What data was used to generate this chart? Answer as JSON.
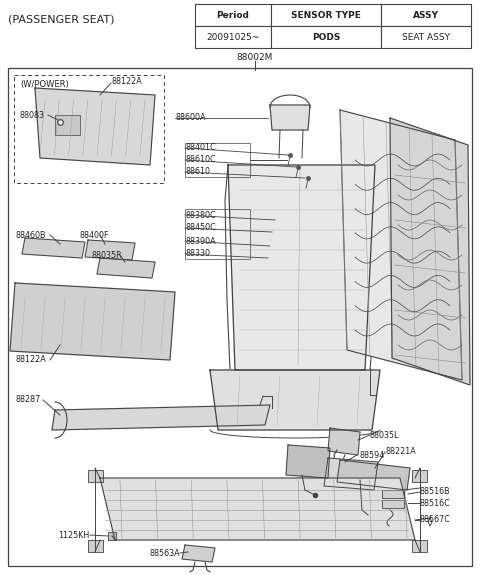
{
  "title": "(PASSENGER SEAT)",
  "part_number": "88002M",
  "table_headers": [
    "Period",
    "SENSOR TYPE",
    "ASSY"
  ],
  "table_row": [
    "20091025~",
    "PODS",
    "SEAT ASSY"
  ],
  "subbox_label": "(W/POWER)",
  "bg": "#f5f5f5",
  "white": "#ffffff",
  "lc": "#444444",
  "tc": "#222222",
  "label_fs": 5.8,
  "title_fs": 8.0,
  "fig_w": 4.8,
  "fig_h": 5.75,
  "dpi": 100
}
